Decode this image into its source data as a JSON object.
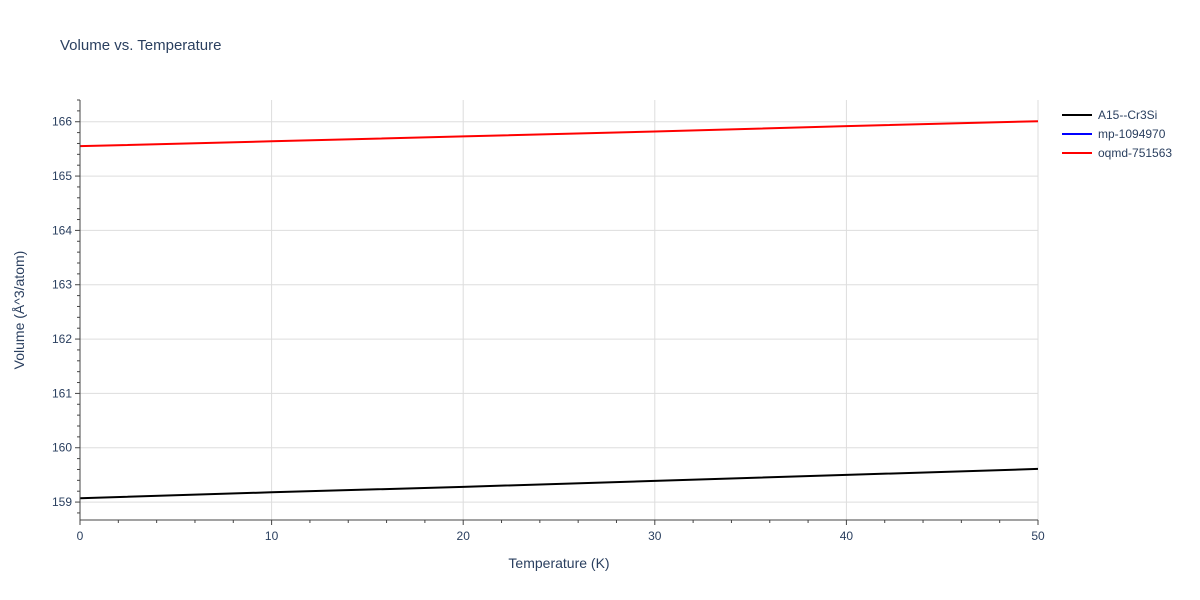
{
  "chart_data": {
    "type": "line",
    "title": "Volume vs. Temperature",
    "xlabel": "Temperature (K)",
    "ylabel": "Volume (Å^3/atom)",
    "xlim": [
      0,
      50
    ],
    "ylim": [
      158.67,
      166.4
    ],
    "x_ticks": [
      0,
      10,
      20,
      30,
      40,
      50
    ],
    "y_ticks": [
      159,
      160,
      161,
      162,
      163,
      164,
      165,
      166
    ],
    "grid": true,
    "legend_position": "top-right",
    "series": [
      {
        "name": "A15--Cr3Si",
        "color": "#000000",
        "x": [
          0,
          10,
          20,
          30,
          40,
          50
        ],
        "y": [
          159.07,
          159.18,
          159.28,
          159.39,
          159.5,
          159.61
        ]
      },
      {
        "name": "mp-1094970",
        "color": "#0000ff",
        "x": [],
        "y": []
      },
      {
        "name": "oqmd-751563",
        "color": "#ff0000",
        "x": [
          0,
          10,
          20,
          30,
          40,
          50
        ],
        "y": [
          165.55,
          165.64,
          165.73,
          165.82,
          165.92,
          166.01
        ]
      }
    ]
  }
}
